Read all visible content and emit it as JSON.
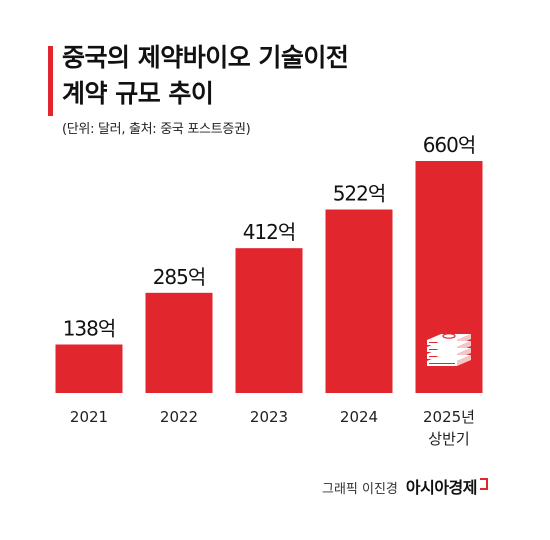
{
  "header": {
    "title_line1": "중국의 제약바이오 기술이전",
    "title_line2": "계약 규모 추이",
    "subtitle": "(단위: 달러, 출처: 중국 포스트증권)"
  },
  "footer": {
    "credit": "그래픽 이진경",
    "logo_text": "아시아경제"
  },
  "colors": {
    "bar": "#e1262d",
    "text": "#111111",
    "axis": "#222222"
  },
  "chart_data": {
    "type": "bar",
    "categories": [
      "2021",
      "2022",
      "2023",
      "2024",
      "2025년 상반기"
    ],
    "category_lines": [
      [
        "2021"
      ],
      [
        "2022"
      ],
      [
        "2023"
      ],
      [
        "2024"
      ],
      [
        "2025년",
        "상반기"
      ]
    ],
    "values": [
      138,
      285,
      412,
      522,
      660
    ],
    "value_labels": [
      "138억",
      "285억",
      "412억",
      "522억",
      "660억"
    ],
    "title": "중국의 제약바이오 기술이전 계약 규모 추이",
    "xlabel": "",
    "ylabel": "",
    "unit": "억",
    "ylim": [
      0,
      660
    ],
    "grid": false,
    "icon": "money-stack-icon"
  }
}
